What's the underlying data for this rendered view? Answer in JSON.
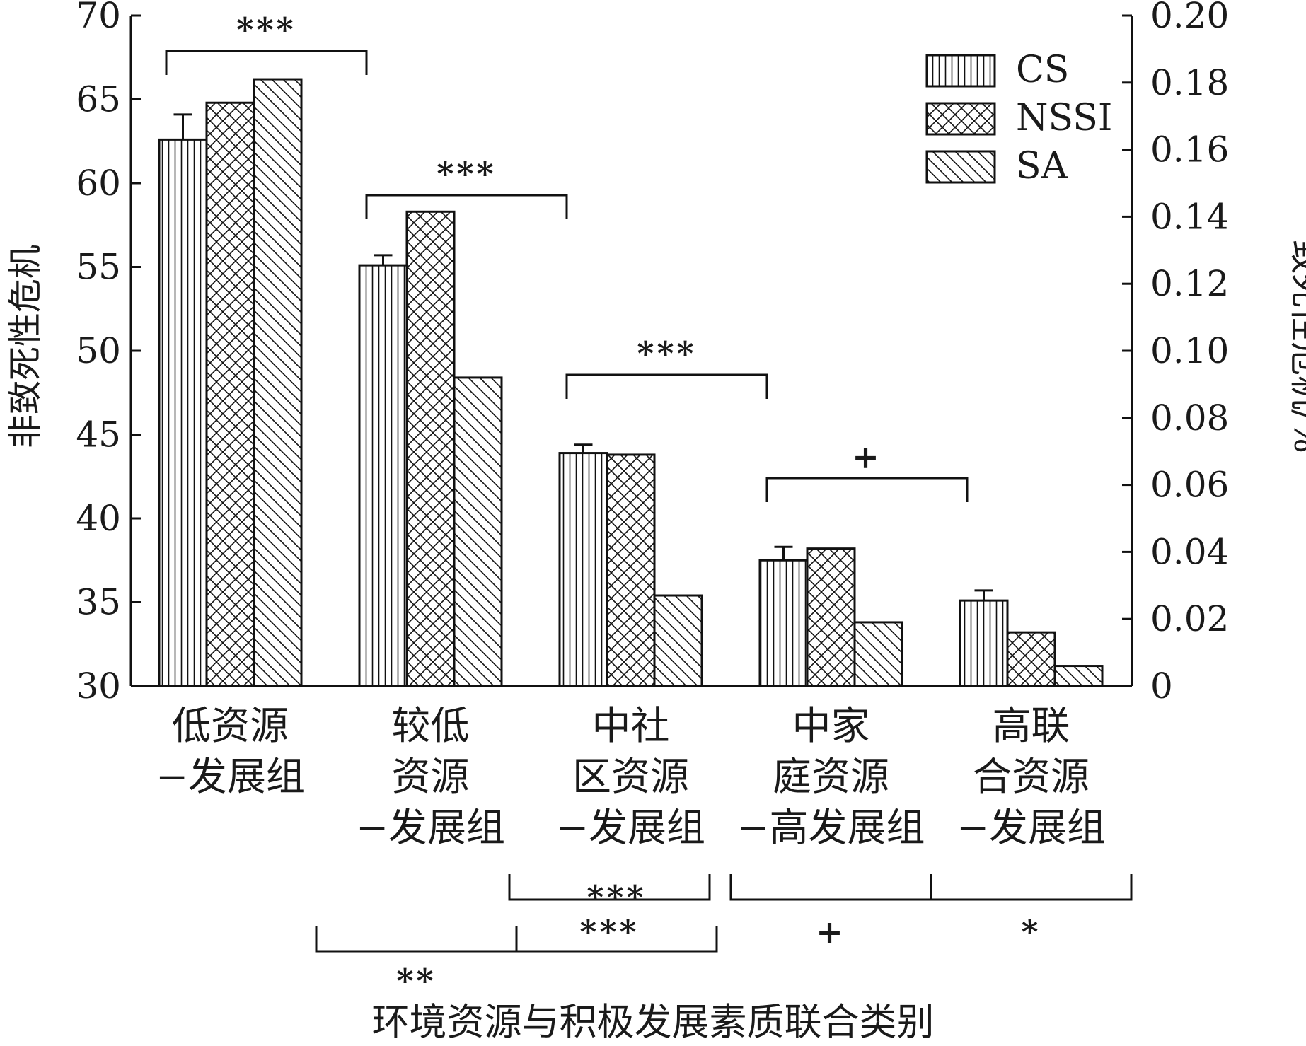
{
  "chart_data": {
    "type": "bar",
    "xlabel": "环境资源与积极发展素质联合类别",
    "ylabel": "非致死性危机",
    "ylabel_right": "致死性危机/%",
    "ylim": [
      30,
      70
    ],
    "ylim_right": [
      0,
      0.2
    ],
    "yticks": [
      "30",
      "35",
      "40",
      "45",
      "50",
      "55",
      "60",
      "65",
      "70"
    ],
    "yticks_right": [
      "0",
      "0.02",
      "0.04",
      "0.06",
      "0.08",
      "0.10",
      "0.12",
      "0.14",
      "0.16",
      "0.18",
      "0.20"
    ],
    "categories": [
      [
        "低资源",
        "−发展组"
      ],
      [
        "较低",
        "资源",
        "−发展组"
      ],
      [
        "中社",
        "区资源",
        "−发展组"
      ],
      [
        "中家",
        "庭资源",
        "−高发展组"
      ],
      [
        "高联",
        "合资源",
        "−发展组"
      ]
    ],
    "series": [
      {
        "name": "CS",
        "axis": "left",
        "pattern": "vertical-lines",
        "values": [
          62.6,
          55.1,
          43.9,
          37.5,
          35.1
        ],
        "error": [
          1.5,
          0.6,
          0.5,
          0.8,
          0.6
        ]
      },
      {
        "name": "NSSI",
        "axis": "left",
        "pattern": "crosshatch",
        "values": [
          64.8,
          58.3,
          43.8,
          38.2,
          33.2
        ]
      },
      {
        "name": "SA",
        "axis": "right",
        "pattern": "diagonal-lines",
        "values": [
          0.181,
          0.092,
          0.027,
          0.019,
          0.006
        ]
      }
    ],
    "legend_position": "top-right",
    "grid": false,
    "significance_top": [
      {
        "from": 0,
        "to": 1,
        "label": "***"
      },
      {
        "from": 1,
        "to": 2,
        "label": "***"
      },
      {
        "from": 2,
        "to": 3,
        "label": "***"
      },
      {
        "from": 3,
        "to": 4,
        "label": "+"
      }
    ],
    "significance_lower": [
      {
        "from": 1.5,
        "to": 2.5,
        "label": "***",
        "label_side": "below"
      },
      {
        "from": 2.5,
        "to": 3.5,
        "label": "+",
        "label_side": "below"
      },
      {
        "from": 3.5,
        "to": 4.5,
        "label": "*",
        "label_side": "below"
      }
    ],
    "significance_bottom": [
      {
        "from": 0.5,
        "to": 1.5,
        "label": "**",
        "label_side": "below"
      },
      {
        "from": 1.5,
        "to": 2.5,
        "label": "***",
        "label_side": "above"
      }
    ]
  }
}
